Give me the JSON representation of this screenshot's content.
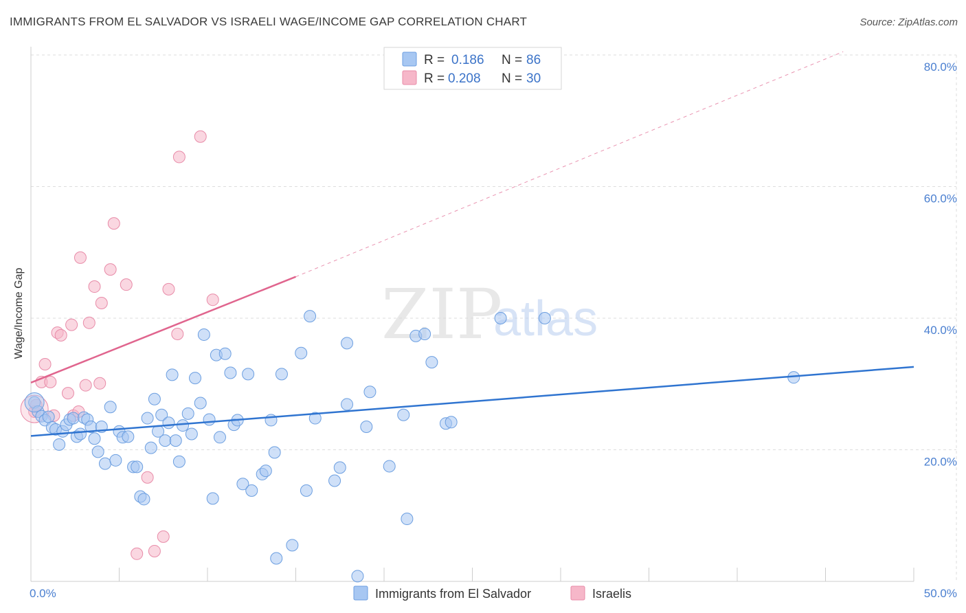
{
  "header": {
    "title": "IMMIGRANTS FROM EL SALVADOR VS ISRAELI WAGE/INCOME GAP CORRELATION CHART",
    "source": "Source: ZipAtlas.com"
  },
  "legend": {
    "items": [
      {
        "r_label": "R =",
        "r_value": "0.186",
        "n_label": "N =",
        "n_value": "86",
        "color": "#a7c7f2"
      },
      {
        "r_label": "R =",
        "r_value": "0.208",
        "n_label": "N =",
        "n_value": "30",
        "color": "#f6b7c9"
      }
    ]
  },
  "bottom_legend": {
    "series1": "Immigrants from El Salvador",
    "series2": "Israelis"
  },
  "watermark": {
    "part1": "ZIP",
    "part2": "atlas"
  },
  "colors": {
    "blue_fill": "#a7c7f2",
    "blue_stroke": "#6b9ee0",
    "blue_line": "#2f74d0",
    "pink_fill": "#f6b7c9",
    "pink_stroke": "#e88ba8",
    "pink_line": "#e0658e",
    "tick_text": "#4a7fd0",
    "grid": "#dddddd"
  },
  "chart_data": {
    "type": "scatter",
    "title": "IMMIGRANTS FROM EL SALVADOR VS ISRAELI WAGE/INCOME GAP CORRELATION CHART",
    "xlabel": "",
    "ylabel": "Wage/Income Gap",
    "xlim": [
      0,
      50
    ],
    "ylim": [
      0,
      80
    ],
    "x_tick_labels": [
      "0.0%",
      "50.0%"
    ],
    "y_tick_labels": [
      "20.0%",
      "40.0%",
      "60.0%",
      "80.0%"
    ],
    "y_ticks": [
      20,
      40,
      60,
      80
    ],
    "grid": true,
    "legend_position": "top-center",
    "series": [
      {
        "name": "Immigrants from El Salvador",
        "color": "#a7c7f2",
        "r": 0.186,
        "n": 86,
        "trend": {
          "x": [
            0,
            50
          ],
          "y": [
            22.1,
            32.6
          ],
          "style": "solid"
        },
        "points": [
          [
            0.2,
            27.2
          ],
          [
            0.4,
            25.8
          ],
          [
            0.6,
            25.1
          ],
          [
            0.8,
            24.5
          ],
          [
            1.0,
            25.0
          ],
          [
            1.2,
            23.4
          ],
          [
            1.4,
            23.1
          ],
          [
            1.6,
            20.8
          ],
          [
            1.8,
            22.8
          ],
          [
            2.0,
            23.8
          ],
          [
            2.2,
            24.6
          ],
          [
            2.4,
            24.8
          ],
          [
            2.6,
            22.0
          ],
          [
            2.8,
            22.4
          ],
          [
            3.0,
            24.9
          ],
          [
            3.2,
            24.6
          ],
          [
            3.4,
            23.5
          ],
          [
            3.6,
            21.7
          ],
          [
            3.8,
            19.7
          ],
          [
            4.0,
            23.5
          ],
          [
            4.2,
            17.9
          ],
          [
            4.5,
            26.5
          ],
          [
            4.8,
            18.4
          ],
          [
            5.0,
            22.8
          ],
          [
            5.2,
            21.9
          ],
          [
            5.5,
            22.0
          ],
          [
            5.8,
            17.4
          ],
          [
            6.0,
            17.4
          ],
          [
            6.2,
            12.9
          ],
          [
            6.4,
            12.5
          ],
          [
            6.6,
            24.8
          ],
          [
            6.8,
            20.3
          ],
          [
            7.0,
            27.7
          ],
          [
            7.2,
            22.8
          ],
          [
            7.4,
            25.3
          ],
          [
            7.6,
            21.4
          ],
          [
            7.8,
            24.1
          ],
          [
            8.0,
            31.4
          ],
          [
            8.2,
            21.4
          ],
          [
            8.4,
            18.2
          ],
          [
            8.6,
            23.7
          ],
          [
            8.9,
            25.5
          ],
          [
            9.1,
            22.4
          ],
          [
            9.3,
            30.9
          ],
          [
            9.6,
            27.1
          ],
          [
            9.8,
            37.5
          ],
          [
            10.1,
            24.6
          ],
          [
            10.3,
            12.6
          ],
          [
            10.5,
            34.4
          ],
          [
            10.7,
            21.9
          ],
          [
            11.0,
            34.6
          ],
          [
            11.3,
            31.7
          ],
          [
            11.5,
            23.8
          ],
          [
            11.7,
            24.5
          ],
          [
            12.0,
            14.8
          ],
          [
            12.3,
            31.5
          ],
          [
            12.5,
            13.8
          ],
          [
            13.1,
            16.3
          ],
          [
            13.3,
            16.8
          ],
          [
            13.6,
            24.5
          ],
          [
            13.8,
            19.6
          ],
          [
            14.2,
            31.5
          ],
          [
            14.8,
            5.5
          ],
          [
            15.3,
            34.7
          ],
          [
            15.6,
            13.8
          ],
          [
            15.8,
            40.3
          ],
          [
            16.1,
            24.8
          ],
          [
            17.2,
            15.3
          ],
          [
            17.5,
            17.3
          ],
          [
            17.9,
            36.2
          ],
          [
            17.9,
            26.9
          ],
          [
            18.5,
            0.8
          ],
          [
            19.0,
            23.5
          ],
          [
            19.2,
            28.8
          ],
          [
            20.3,
            17.5
          ],
          [
            21.1,
            25.3
          ],
          [
            21.3,
            9.5
          ],
          [
            21.8,
            37.3
          ],
          [
            22.3,
            37.6
          ],
          [
            22.7,
            33.3
          ],
          [
            23.5,
            24.0
          ],
          [
            23.8,
            24.2
          ],
          [
            26.6,
            40.0
          ],
          [
            29.1,
            40.0
          ],
          [
            43.2,
            31.0
          ],
          [
            13.9,
            3.5
          ]
        ]
      },
      {
        "name": "Israelis",
        "color": "#f6b7c9",
        "r": 0.208,
        "n": 30,
        "trend": {
          "x": [
            0,
            15
          ],
          "y": [
            30.2,
            46.3
          ],
          "style": "solid",
          "extended": {
            "x": [
              15,
              46
            ],
            "y": [
              46.3,
              80.5
            ],
            "style": "dashed"
          }
        },
        "points": [
          [
            0.2,
            25.8
          ],
          [
            0.3,
            26.8
          ],
          [
            0.6,
            30.3
          ],
          [
            0.8,
            33.0
          ],
          [
            1.1,
            30.3
          ],
          [
            1.3,
            25.2
          ],
          [
            1.5,
            37.8
          ],
          [
            1.7,
            37.4
          ],
          [
            2.1,
            28.6
          ],
          [
            2.3,
            39.0
          ],
          [
            2.4,
            25.2
          ],
          [
            2.7,
            25.8
          ],
          [
            2.8,
            49.2
          ],
          [
            3.1,
            29.8
          ],
          [
            3.3,
            39.3
          ],
          [
            3.6,
            44.8
          ],
          [
            3.9,
            30.1
          ],
          [
            4.0,
            42.3
          ],
          [
            4.5,
            47.4
          ],
          [
            4.7,
            54.4
          ],
          [
            5.4,
            45.1
          ],
          [
            6.0,
            4.2
          ],
          [
            6.6,
            15.8
          ],
          [
            7.0,
            4.6
          ],
          [
            7.5,
            6.8
          ],
          [
            7.8,
            44.4
          ],
          [
            8.3,
            37.6
          ],
          [
            8.4,
            64.5
          ],
          [
            9.6,
            67.6
          ],
          [
            10.3,
            42.8
          ]
        ]
      }
    ]
  }
}
